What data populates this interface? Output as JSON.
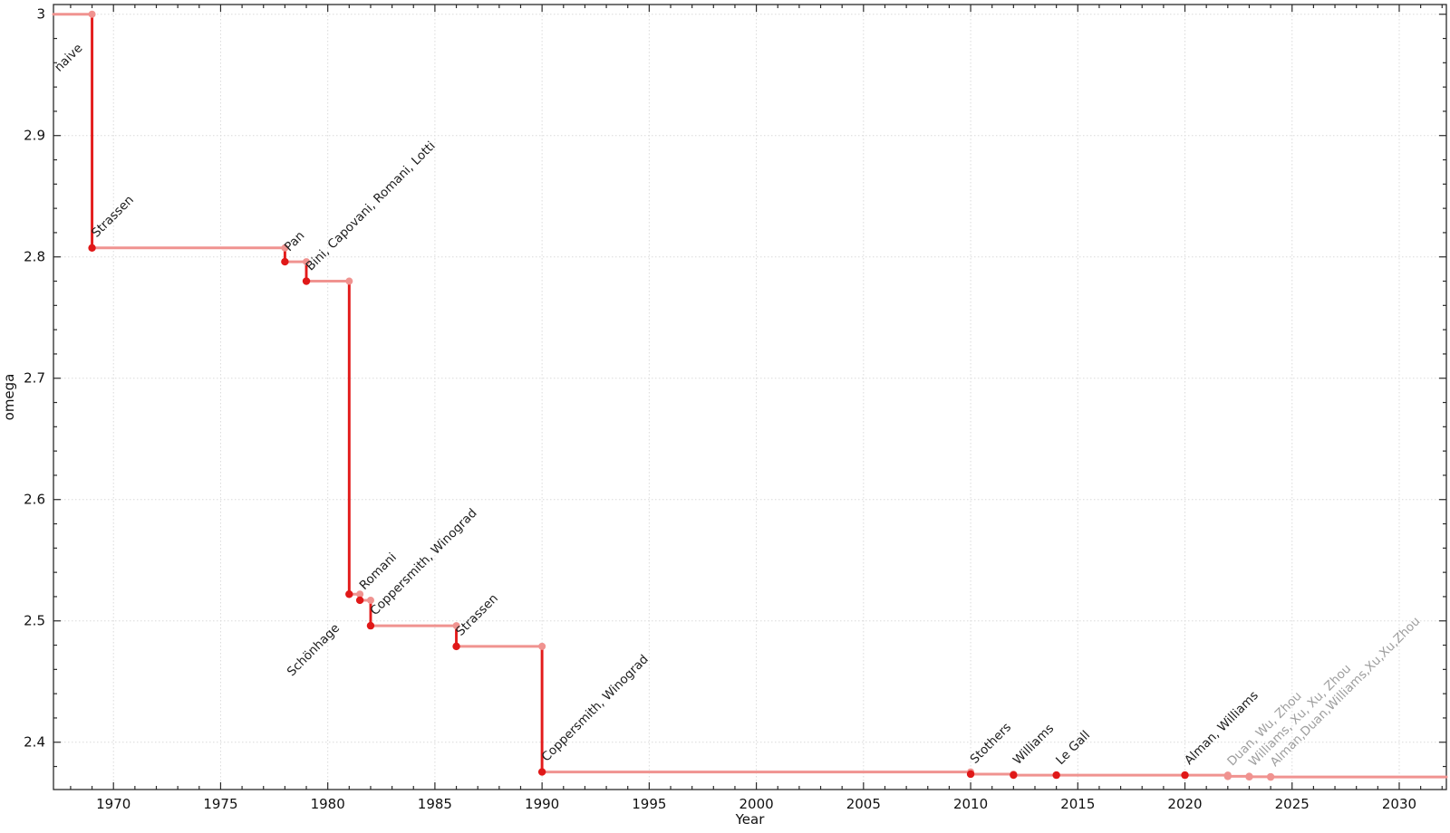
{
  "chart_data": {
    "type": "line",
    "subtype": "step-post",
    "title": "",
    "xlabel": "Year",
    "ylabel": "omega",
    "xlim": [
      1967.2,
      2032.2
    ],
    "ylim": [
      2.361,
      3.008
    ],
    "x_ticks_major": [
      1970,
      1975,
      1980,
      1985,
      1990,
      1995,
      2000,
      2005,
      2010,
      2015,
      2020,
      2025,
      2030
    ],
    "x_minor_step": 1,
    "y_ticks_major": [
      3,
      2.9,
      2.8,
      2.7,
      2.6,
      2.5,
      2.4
    ],
    "y_tick_labels": [
      "3",
      "2.9",
      "2.8",
      "2.7",
      "2.6",
      "2.5",
      "2.4"
    ],
    "y_minor_step": 0.02,
    "grid": "dotted-major",
    "legend": "none",
    "colors": {
      "bound_step_line": "#f09390",
      "improvement_drop_line": "#e31b1b",
      "point_established": "#e01818",
      "point_corner": "#f09390",
      "point_provisional": "#f09390",
      "label_established": "#1c1c1c",
      "label_provisional": "#9e9e9e",
      "axis": "#2a2a2a",
      "grid_line": "#dadada",
      "tick_label": "#111111"
    },
    "milestones": [
      {
        "label": "naive",
        "year": null,
        "omega": 3.0,
        "label_placement": "below",
        "provisional": false
      },
      {
        "label": "Strassen",
        "year": 1969,
        "omega": 2.8074,
        "label_placement": "above",
        "provisional": false
      },
      {
        "label": "Pan",
        "year": 1978,
        "omega": 2.796,
        "label_placement": "above",
        "provisional": false
      },
      {
        "label": "Bini, Capovani, Romani, Lotti",
        "year": 1979,
        "omega": 2.78,
        "label_placement": "above",
        "provisional": false
      },
      {
        "label": "Schönhage",
        "year": 1981,
        "omega": 2.522,
        "label_placement": "below",
        "provisional": false
      },
      {
        "label": "Romani",
        "year": 1981.5,
        "omega": 2.517,
        "label_placement": "above",
        "provisional": false
      },
      {
        "label": "Coppersmith, Winograd",
        "year": 1982,
        "omega": 2.496,
        "label_placement": "above",
        "provisional": false
      },
      {
        "label": "Strassen",
        "year": 1986,
        "omega": 2.479,
        "label_placement": "above",
        "provisional": false
      },
      {
        "label": "Coppersmith, Winograd",
        "year": 1990,
        "omega": 2.3755,
        "label_placement": "above",
        "provisional": false
      },
      {
        "label": "Stothers",
        "year": 2010,
        "omega": 2.3737,
        "label_placement": "above",
        "provisional": false
      },
      {
        "label": "Williams",
        "year": 2012,
        "omega": 2.3729,
        "label_placement": "above",
        "provisional": false
      },
      {
        "label": "Le Gall",
        "year": 2014,
        "omega": 2.3728639,
        "label_placement": "above",
        "provisional": false
      },
      {
        "label": "Alman, Williams",
        "year": 2020,
        "omega": 2.3728596,
        "label_placement": "above",
        "provisional": false
      },
      {
        "label": "Duan, Wu, Zhou",
        "year": 2022,
        "omega": 2.37188,
        "label_placement": "above",
        "provisional": true
      },
      {
        "label": "Williams, Xu, Xu, Zhou",
        "year": 2023,
        "omega": 2.371552,
        "label_placement": "above",
        "provisional": true
      },
      {
        "label": "Alman,Duan,Williams,Xu,Xu,Zhou",
        "year": 2024,
        "omega": 2.371339,
        "label_placement": "above",
        "provisional": true
      }
    ]
  }
}
